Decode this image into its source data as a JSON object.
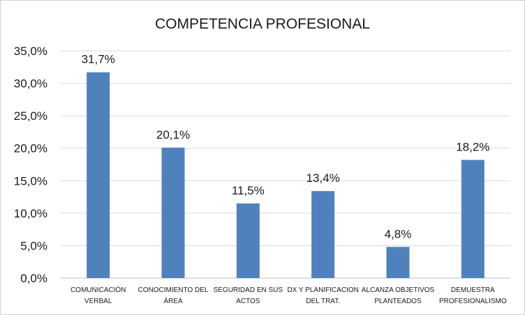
{
  "chart_data": {
    "type": "bar",
    "title": "COMPETENCIA PROFESIONAL",
    "categories": [
      [
        "COMUNICACIÓN",
        "VERBAL"
      ],
      [
        "CONOCIMIENTO DEL",
        "ÁREA"
      ],
      [
        "SEGURIDAD EN SUS",
        "ACTOS"
      ],
      [
        "DX Y PLANIFICACION",
        "DEL TRAT."
      ],
      [
        "ALCANZA OBJETIVOS",
        "PLANTEADOS"
      ],
      [
        "DEMUESTRA",
        "PROFESIONALISMO"
      ]
    ],
    "values": [
      31.7,
      20.1,
      11.5,
      13.4,
      4.8,
      18.2
    ],
    "data_labels": [
      "31,7%",
      "20,1%",
      "11,5%",
      "13,4%",
      "4,8%",
      "18,2%"
    ],
    "ylim": [
      0,
      35
    ],
    "yticks": [
      0,
      5,
      10,
      15,
      20,
      25,
      30,
      35
    ],
    "ytick_labels": [
      "0,0%",
      "5,0%",
      "10,0%",
      "15,0%",
      "20,0%",
      "25,0%",
      "30,0%",
      "35,0%"
    ],
    "grid": true,
    "legend": "none",
    "bar_color": "#4F81BD"
  }
}
